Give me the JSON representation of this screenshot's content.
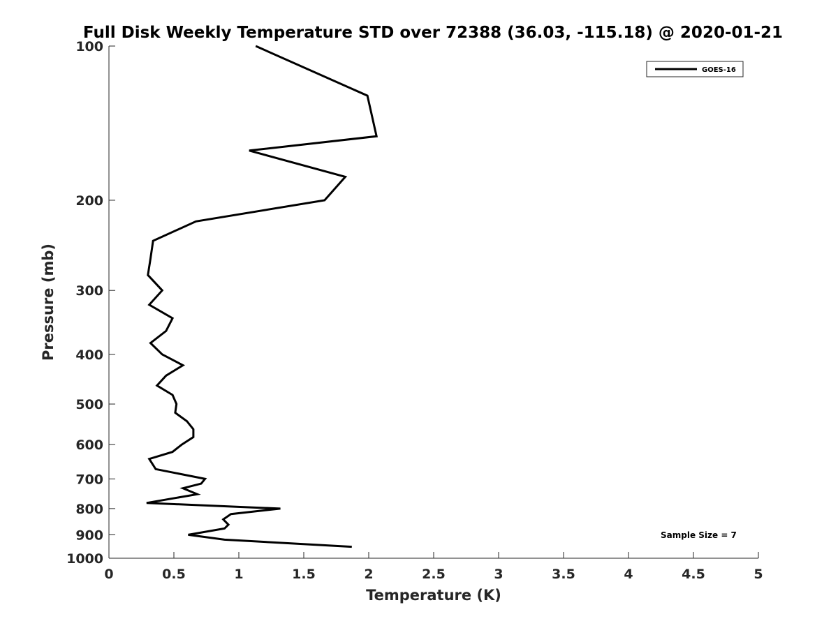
{
  "chart_data": {
    "type": "line",
    "title": "Full Disk Weekly Temperature STD over 72388 (36.03, -115.18) @ 2020-01-21",
    "xlabel": "Temperature (K)",
    "ylabel": "Pressure (mb)",
    "xlim": [
      0,
      5
    ],
    "ylim": [
      100,
      1000
    ],
    "yscale": "log",
    "y_reversed": true,
    "x_ticks": [
      "0",
      "0.5",
      "1",
      "1.5",
      "2",
      "2.5",
      "3",
      "3.5",
      "4",
      "4.5",
      "5"
    ],
    "y_ticks": [
      {
        "value": 100,
        "label": "100"
      },
      {
        "value": 200,
        "label": "200"
      },
      {
        "value": 300,
        "label": "300"
      },
      {
        "value": 400,
        "label": "400"
      },
      {
        "value": 500,
        "label": "500"
      },
      {
        "value": 600,
        "label": "600"
      },
      {
        "value": 700,
        "label": "700"
      },
      {
        "value": 800,
        "label": "800"
      },
      {
        "value": 900,
        "label": "900"
      },
      {
        "value": 1000,
        "label": "1000"
      }
    ],
    "grid": false,
    "legend_position": "top-right",
    "annotation": "Sample Size = 7",
    "line_color": "#000000",
    "series": [
      {
        "name": "GOES-16",
        "points": [
          [
            1.13,
            100
          ],
          [
            1.99,
            125
          ],
          [
            2.06,
            150
          ],
          [
            1.08,
            160
          ],
          [
            1.82,
            180
          ],
          [
            1.66,
            200
          ],
          [
            0.67,
            220
          ],
          [
            0.34,
            240
          ],
          [
            0.32,
            260
          ],
          [
            0.3,
            280
          ],
          [
            0.41,
            300
          ],
          [
            0.31,
            320
          ],
          [
            0.49,
            340
          ],
          [
            0.44,
            360
          ],
          [
            0.32,
            380
          ],
          [
            0.41,
            400
          ],
          [
            0.57,
            420
          ],
          [
            0.44,
            440
          ],
          [
            0.37,
            460
          ],
          [
            0.49,
            480
          ],
          [
            0.52,
            500
          ],
          [
            0.51,
            520
          ],
          [
            0.6,
            540
          ],
          [
            0.65,
            560
          ],
          [
            0.65,
            580
          ],
          [
            0.56,
            600
          ],
          [
            0.49,
            620
          ],
          [
            0.31,
            640
          ],
          [
            0.36,
            670
          ],
          [
            0.74,
            700
          ],
          [
            0.71,
            715
          ],
          [
            0.57,
            730
          ],
          [
            0.68,
            750
          ],
          [
            0.29,
            780
          ],
          [
            1.32,
            800
          ],
          [
            0.94,
            820
          ],
          [
            0.88,
            840
          ],
          [
            0.92,
            860
          ],
          [
            0.89,
            875
          ],
          [
            0.61,
            900
          ],
          [
            0.89,
            920
          ],
          [
            1.87,
            950
          ]
        ]
      }
    ]
  }
}
